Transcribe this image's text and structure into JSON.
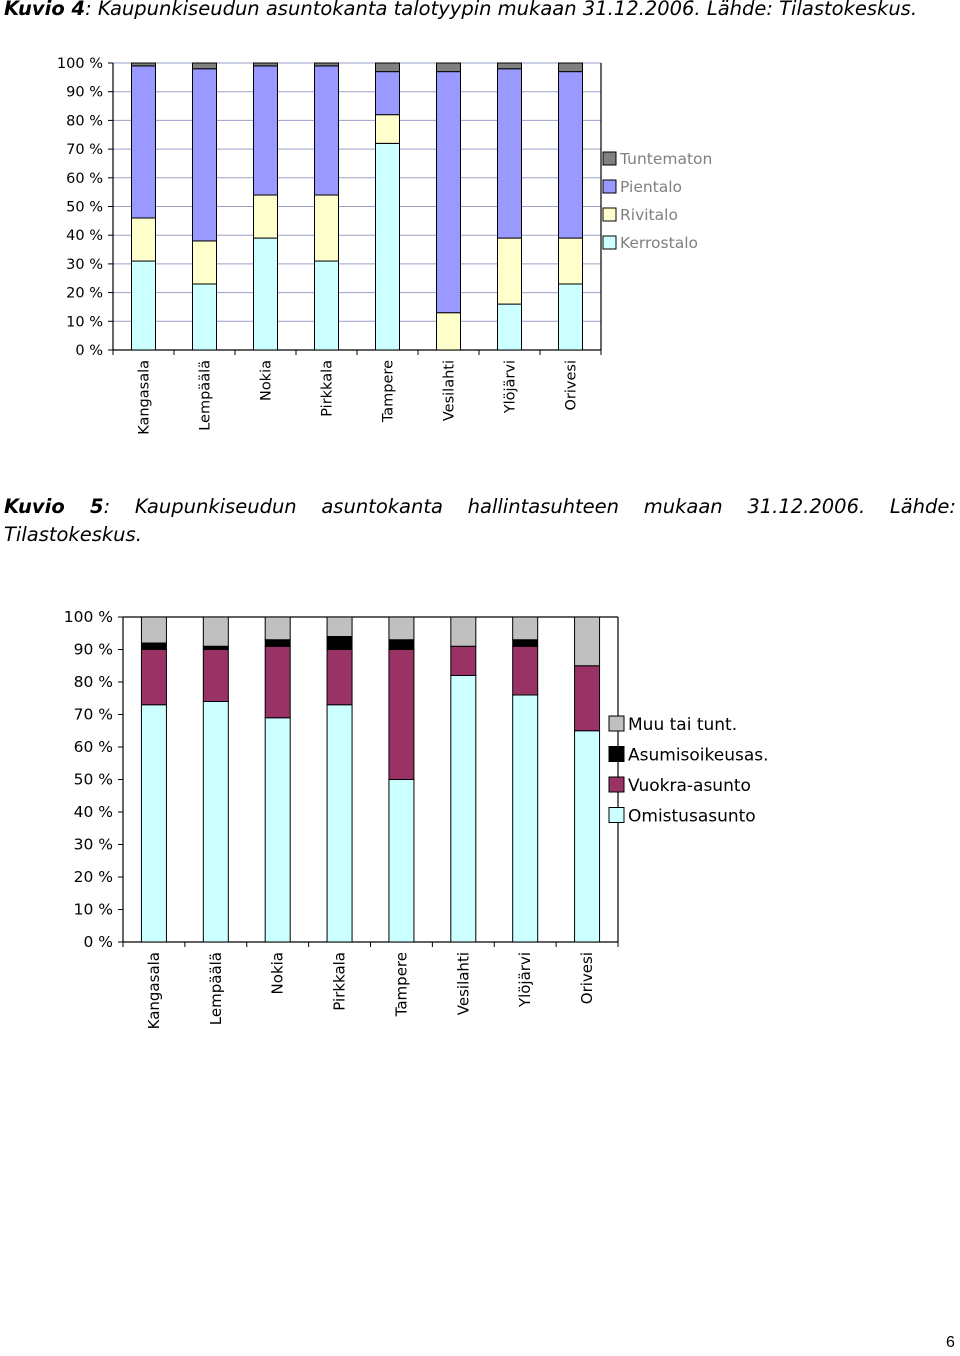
{
  "captions": {
    "fig4_label": "Kuvio 4",
    "fig4_text": ": Kaupunkiseudun asuntokanta talotyypin mukaan 31.12.2006. Lähde: Tilastokeskus.",
    "fig5_label": "Kuvio 5",
    "fig5_text": ": Kaupunkiseudun asuntokanta hallintasuhteen mukaan 31.12.2006. Lähde: Tilastokeskus."
  },
  "page_number": "6",
  "chart_data": [
    {
      "type": "bar",
      "stacked": true,
      "title": "",
      "ylim": [
        0,
        100
      ],
      "yticks": [
        "0 %",
        "10 %",
        "20 %",
        "30 %",
        "40 %",
        "50 %",
        "60 %",
        "70 %",
        "80 %",
        "90 %",
        "100 %"
      ],
      "categories": [
        "Kangasala",
        "Lempäälä",
        "Nokia",
        "Pirkkala",
        "Tampere",
        "Vesilahti",
        "Ylöjärvi",
        "Orivesi"
      ],
      "legend_position": "right",
      "grid": true,
      "series": [
        {
          "name": "Kerrostalo",
          "color": "#ccffff",
          "values": [
            31,
            23,
            39,
            31,
            72,
            0,
            16,
            23
          ]
        },
        {
          "name": "Rivitalo",
          "color": "#ffffcc",
          "values": [
            15,
            15,
            15,
            23,
            10,
            13,
            23,
            16
          ]
        },
        {
          "name": "Pientalo",
          "color": "#9999ff",
          "values": [
            53,
            60,
            45,
            45,
            15,
            84,
            59,
            58
          ]
        },
        {
          "name": "Tuntematon",
          "color": "#808080",
          "values": [
            1,
            2,
            1,
            1,
            3,
            3,
            2,
            3
          ]
        }
      ]
    },
    {
      "type": "bar",
      "stacked": true,
      "title": "",
      "ylim": [
        0,
        100
      ],
      "yticks": [
        "0 %",
        "10 %",
        "20 %",
        "30 %",
        "40 %",
        "50 %",
        "60 %",
        "70 %",
        "80 %",
        "90 %",
        "100 %"
      ],
      "categories": [
        "Kangasala",
        "Lempäälä",
        "Nokia",
        "Pirkkala",
        "Tampere",
        "Vesilahti",
        "Ylöjärvi",
        "Orivesi"
      ],
      "legend_position": "right",
      "grid": false,
      "series": [
        {
          "name": "Omistusasunto",
          "color": "#ccffff",
          "values": [
            73,
            74,
            69,
            73,
            50,
            82,
            76,
            65
          ]
        },
        {
          "name": "Vuokra-asunto",
          "color": "#993366",
          "values": [
            17,
            16,
            22,
            17,
            40,
            9,
            15,
            20
          ]
        },
        {
          "name": "Asumisoikeusas.",
          "color": "#000000",
          "values": [
            2,
            1,
            2,
            4,
            3,
            0,
            2,
            0
          ]
        },
        {
          "name": "Muu tai tunt.",
          "color": "#c0c0c0",
          "values": [
            8,
            9,
            7,
            6,
            7,
            9,
            7,
            15
          ]
        }
      ]
    }
  ]
}
